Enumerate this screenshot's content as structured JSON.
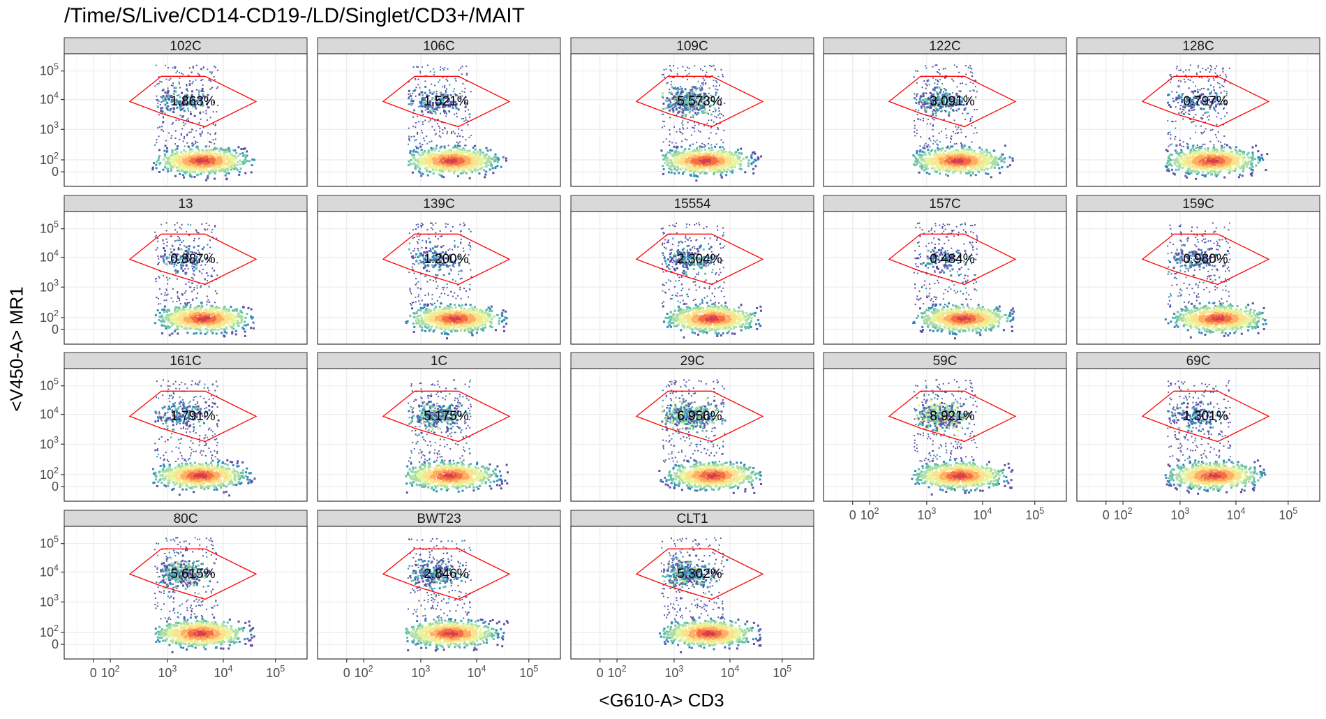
{
  "title": "/Time/S/Live/CD14-CD19-/LD/Singlet/CD3+/MAIT",
  "chart_data": {
    "type": "scatter",
    "title": "/Time/S/Live/CD14-CD19-/LD/Singlet/CD3+/MAIT",
    "xlabel": "<G610-A> CD3",
    "ylabel": "<V450-A> MR1",
    "x_scale": "biexponential",
    "y_scale": "biexponential",
    "x_ticks": [
      "0",
      "10^2",
      "10^3",
      "10^4",
      "10^5"
    ],
    "y_ticks": [
      "0",
      "10^2",
      "10^3",
      "10^4",
      "10^5"
    ],
    "grid": true,
    "gate": {
      "shape": "hexagon",
      "color": "#ff0000",
      "gate_label": "MAIT"
    },
    "colormap": [
      "#5e4fa2",
      "#3288bd",
      "#66c2a5",
      "#abdda4",
      "#e6f598",
      "#fee08b",
      "#fdae61",
      "#f46d43",
      "#d53e4f",
      "#9e0142"
    ],
    "panels": [
      {
        "name": "102C",
        "gate_percent": "1.863%"
      },
      {
        "name": "106C",
        "gate_percent": "1.521%"
      },
      {
        "name": "109C",
        "gate_percent": "5.573%"
      },
      {
        "name": "122C",
        "gate_percent": "3.091%"
      },
      {
        "name": "128C",
        "gate_percent": "0.797%"
      },
      {
        "name": "13",
        "gate_percent": "0.887%"
      },
      {
        "name": "139C",
        "gate_percent": "1.200%"
      },
      {
        "name": "15554",
        "gate_percent": "2.304%"
      },
      {
        "name": "157C",
        "gate_percent": "0.484%"
      },
      {
        "name": "159C",
        "gate_percent": "0.980%"
      },
      {
        "name": "161C",
        "gate_percent": "1.791%"
      },
      {
        "name": "1C",
        "gate_percent": "5.175%"
      },
      {
        "name": "29C",
        "gate_percent": "6.956%"
      },
      {
        "name": "59C",
        "gate_percent": "8.921%"
      },
      {
        "name": "69C",
        "gate_percent": "1.301%"
      },
      {
        "name": "80C",
        "gate_percent": "5.615%"
      },
      {
        "name": "BWT23",
        "gate_percent": "2.846%"
      },
      {
        "name": "CLT1",
        "gate_percent": "5.302%"
      }
    ]
  }
}
